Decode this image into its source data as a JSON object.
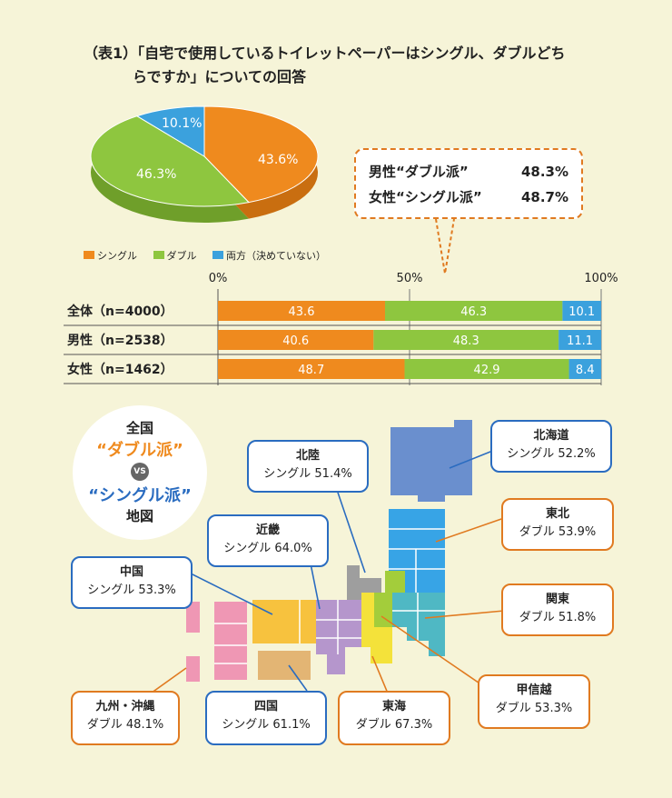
{
  "title": {
    "line1": "（表1）「自宅で使用しているトイレットペーパーはシングル、ダブルどち",
    "line2": "らですか」についての回答"
  },
  "colors": {
    "single": "#ef8a1e",
    "double": "#8ec63f",
    "both": "#3ba1dd"
  },
  "chart_data": [
    {
      "type": "pie",
      "labels": [
        "シングル",
        "ダブル",
        "両方（決めていない）"
      ],
      "values": [
        43.6,
        46.3,
        10.1
      ],
      "value_labels": [
        "43.6%",
        "46.3%",
        "10.1%"
      ]
    },
    {
      "type": "bar",
      "orientation": "horizontal-stacked",
      "categories": [
        "全体（n=4000）",
        "男性（n=2538）",
        "女性（n=1462）"
      ],
      "series": [
        {
          "name": "シングル",
          "values": [
            43.6,
            40.6,
            48.7
          ]
        },
        {
          "name": "ダブル",
          "values": [
            46.3,
            48.3,
            42.9
          ]
        },
        {
          "name": "両方（決めていない）",
          "values": [
            10.1,
            11.1,
            8.4
          ]
        }
      ],
      "ticks": [
        "0%",
        "50%",
        "100%"
      ],
      "xlim": [
        0,
        100
      ]
    }
  ],
  "legend": {
    "single": "シングル",
    "double": "ダブル",
    "both": "両方（決めていない）"
  },
  "speech": {
    "male_label": "男性“ダブル派”",
    "male_value": "48.3%",
    "female_label": "女性“シングル派”",
    "female_value": "48.7%"
  },
  "badge": {
    "l1": "全国",
    "l2": "“ダブル派”",
    "vs": "VS",
    "l3": "“シングル派”",
    "l4": "地図"
  },
  "regions": {
    "hokkaido": {
      "name": "北海道",
      "value": "シングル 52.2%"
    },
    "tohoku": {
      "name": "東北",
      "value": "ダブル 53.9%"
    },
    "kanto": {
      "name": "関東",
      "value": "ダブル 51.8%"
    },
    "koshinetsu": {
      "name": "甲信越",
      "value": "ダブル 53.3%"
    },
    "tokai": {
      "name": "東海",
      "value": "ダブル 67.3%"
    },
    "shikoku": {
      "name": "四国",
      "value": "シングル 61.1%"
    },
    "kyushu": {
      "name": "九州・沖縄",
      "value": "ダブル 48.1%"
    },
    "chugoku": {
      "name": "中国",
      "value": "シングル 53.3%"
    },
    "kinki": {
      "name": "近畿",
      "value": "シングル 64.0%"
    },
    "hokuriku": {
      "name": "北陸",
      "value": "シングル 51.4%"
    }
  }
}
